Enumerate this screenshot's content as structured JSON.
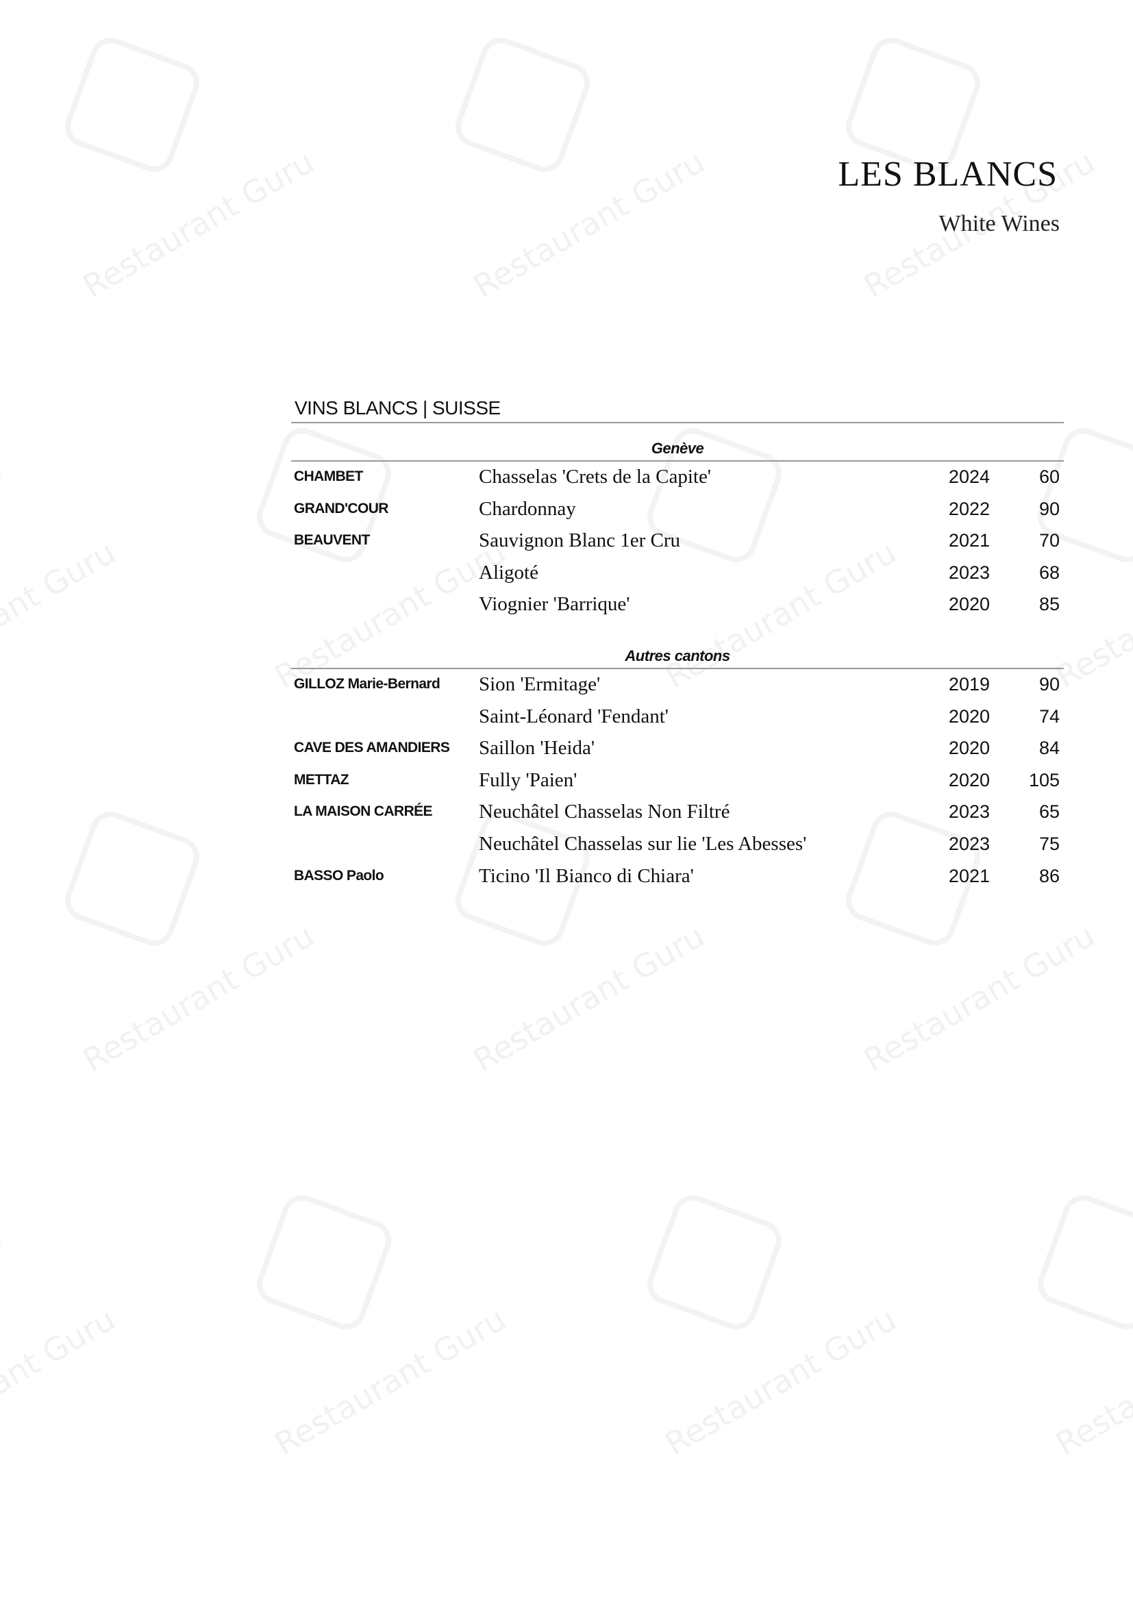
{
  "watermark": "Restaurant Guru",
  "header": {
    "title": "LES BLANCS",
    "subtitle": "White Wines"
  },
  "section": {
    "title": "VINS BLANCS | SUISSE",
    "groups": [
      {
        "name": "Genève",
        "rows": [
          {
            "producer": "CHAMBET",
            "wine": "Chasselas 'Crets de la Capite'",
            "year": "2024",
            "price": "60"
          },
          {
            "producer": "GRAND'COUR",
            "wine": "Chardonnay",
            "year": "2022",
            "price": "90"
          },
          {
            "producer": "BEAUVENT",
            "wine": "Sauvignon Blanc 1er Cru",
            "year": "2021",
            "price": "70"
          },
          {
            "producer": "",
            "wine": "Aligoté",
            "year": "2023",
            "price": "68"
          },
          {
            "producer": "",
            "wine": "Viognier 'Barrique'",
            "year": "2020",
            "price": "85"
          }
        ]
      },
      {
        "name": "Autres cantons",
        "rows": [
          {
            "producer": "GILLOZ Marie-Bernard",
            "wine": "Sion 'Ermitage'",
            "year": "2019",
            "price": "90"
          },
          {
            "producer": "",
            "wine": "Saint-Léonard 'Fendant'",
            "year": "2020",
            "price": "74"
          },
          {
            "producer": "CAVE DES AMANDIERS",
            "wine": "Saillon 'Heida'",
            "year": "2020",
            "price": "84"
          },
          {
            "producer": "METTAZ",
            "wine": "Fully 'Paien'",
            "year": "2020",
            "price": "105"
          },
          {
            "producer": "LA MAISON CARRÉE",
            "wine": "Neuchâtel Chasselas Non Filtré",
            "year": "2023",
            "price": "65"
          },
          {
            "producer": "",
            "wine": "Neuchâtel Chasselas sur lie 'Les Abesses'",
            "year": "2023",
            "price": "75"
          },
          {
            "producer": "BASSO Paolo",
            "wine": "Ticino 'Il Bianco di Chiara'",
            "year": "2021",
            "price": "86"
          }
        ]
      }
    ]
  }
}
